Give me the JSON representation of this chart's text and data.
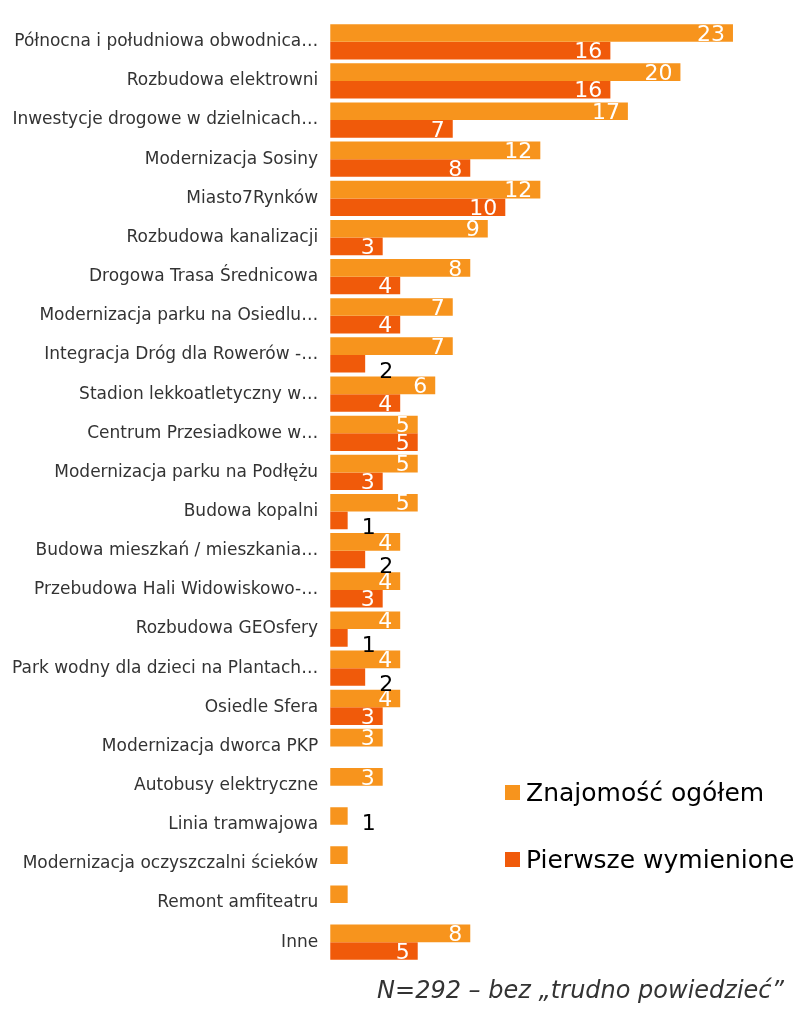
{
  "chart_data": {
    "type": "bar",
    "orientation": "horizontal",
    "categories": [
      "Północna i południowa obwodnica…",
      "Rozbudowa elektrowni",
      "Inwestycje drogowe w dzielnicach…",
      "Modernizacja Sosiny",
      "Miasto7Rynków",
      "Rozbudowa kanalizacji",
      "Drogowa Trasa Średnicowa",
      "Modernizacja parku na Osiedlu…",
      "Integracja Dróg dla Rowerów -…",
      "Stadion lekkoatletyczny w…",
      "Centrum Przesiadkowe w…",
      "Modernizacja parku na Podłężu",
      "Budowa kopalni",
      "Budowa mieszkań / mieszkania…",
      "Przebudowa Hali Widowiskowo-…",
      "Rozbudowa GEOsfery",
      "Park wodny dla dzieci na Plantach…",
      "Osiedle Sfera",
      "Modernizacja dworca PKP",
      "Autobusy elektryczne",
      "Linia tramwajowa",
      "Modernizacja oczyszczalni ścieków",
      "Remont amfiteatru",
      "Inne"
    ],
    "series": [
      {
        "name": "Znajomość ogółem",
        "color": "#f7941d",
        "values": [
          23,
          20,
          17,
          12,
          12,
          9,
          8,
          7,
          7,
          6,
          5,
          5,
          5,
          4,
          4,
          4,
          4,
          4,
          3,
          3,
          1,
          1,
          1,
          8
        ],
        "value_labels": [
          "23",
          "20",
          "17",
          "12",
          "12",
          "9",
          "8",
          "7",
          "7",
          "6",
          "5",
          "5",
          "5",
          "4",
          "4",
          "4",
          "4",
          "4",
          "3",
          "3",
          "1",
          null,
          null,
          "8"
        ]
      },
      {
        "name": "Pierwsze wymienione",
        "color": "#f05a0a",
        "values": [
          16,
          16,
          7,
          8,
          10,
          3,
          4,
          4,
          2,
          4,
          5,
          3,
          1,
          2,
          3,
          1,
          2,
          3,
          null,
          null,
          null,
          null,
          null,
          5
        ],
        "value_labels": [
          "16",
          "16",
          "7",
          "8",
          "10",
          "3",
          "4",
          "4",
          "2",
          "4",
          "5",
          "3",
          "1",
          "2",
          "3",
          "1",
          "2",
          "3",
          null,
          null,
          null,
          null,
          null,
          "5"
        ]
      }
    ],
    "legend": "bottom right",
    "annotations": [
      "N=292 – bez „trudno powiedzieć”"
    ]
  }
}
